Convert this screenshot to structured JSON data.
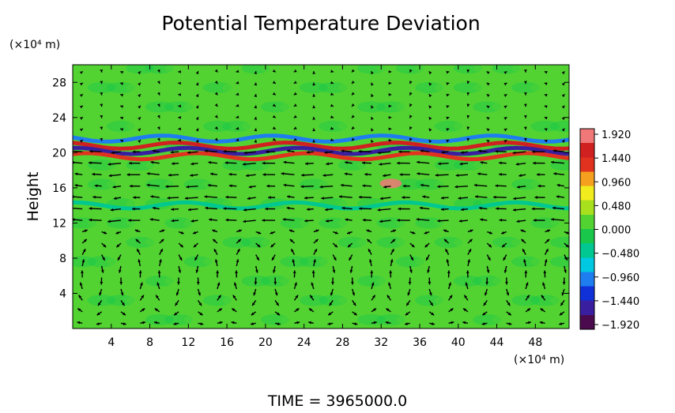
{
  "chart_data": {
    "type": "heatmap",
    "title": "Potential Temperature Deviation",
    "ylabel": "Height",
    "y_unit": "(×10⁴ m)",
    "x_unit": "(×10⁴ m)",
    "x_ticks": [
      4,
      8,
      12,
      16,
      20,
      24,
      28,
      32,
      36,
      40,
      44,
      48
    ],
    "y_ticks": [
      4,
      8,
      12,
      16,
      20,
      24,
      28
    ],
    "xlim": [
      0,
      51.5
    ],
    "ylim": [
      0,
      30
    ],
    "colorbar": {
      "ticks": [
        "1.920",
        "1.440",
        "0.960",
        "0.480",
        "0.000",
        "−0.480",
        "−0.960",
        "−1.440",
        "−1.920"
      ],
      "range": [
        -1.92,
        1.92
      ],
      "colors": [
        "#4b0a4d",
        "#3a1ea0",
        "#1030d8",
        "#1e7ef0",
        "#00c8e0",
        "#00c890",
        "#19c84b",
        "#52d332",
        "#a8e01e",
        "#f0ec1e",
        "#f5a01e",
        "#e0321e",
        "#d02020",
        "#f07878"
      ]
    },
    "background_value": 0.05,
    "features": [
      {
        "kind": "band",
        "y": 20.8,
        "value": 1.4
      },
      {
        "kind": "band",
        "y": 20.2,
        "value": -1.6
      },
      {
        "kind": "band",
        "y": 19.6,
        "value": 1.1
      },
      {
        "kind": "band",
        "y": 21.6,
        "value": -0.9
      },
      {
        "kind": "band",
        "y": 14.0,
        "value": -0.3
      },
      {
        "kind": "blob",
        "x": 33,
        "y": 16.5,
        "value": 1.9
      }
    ],
    "wind_vectors": "~4×10⁴ m spaced circulation cells below 12×10⁴ m; westward flow near 13, 15, 17 and 20×10⁴ m",
    "time_label": "TIME  =  3965000.0"
  }
}
